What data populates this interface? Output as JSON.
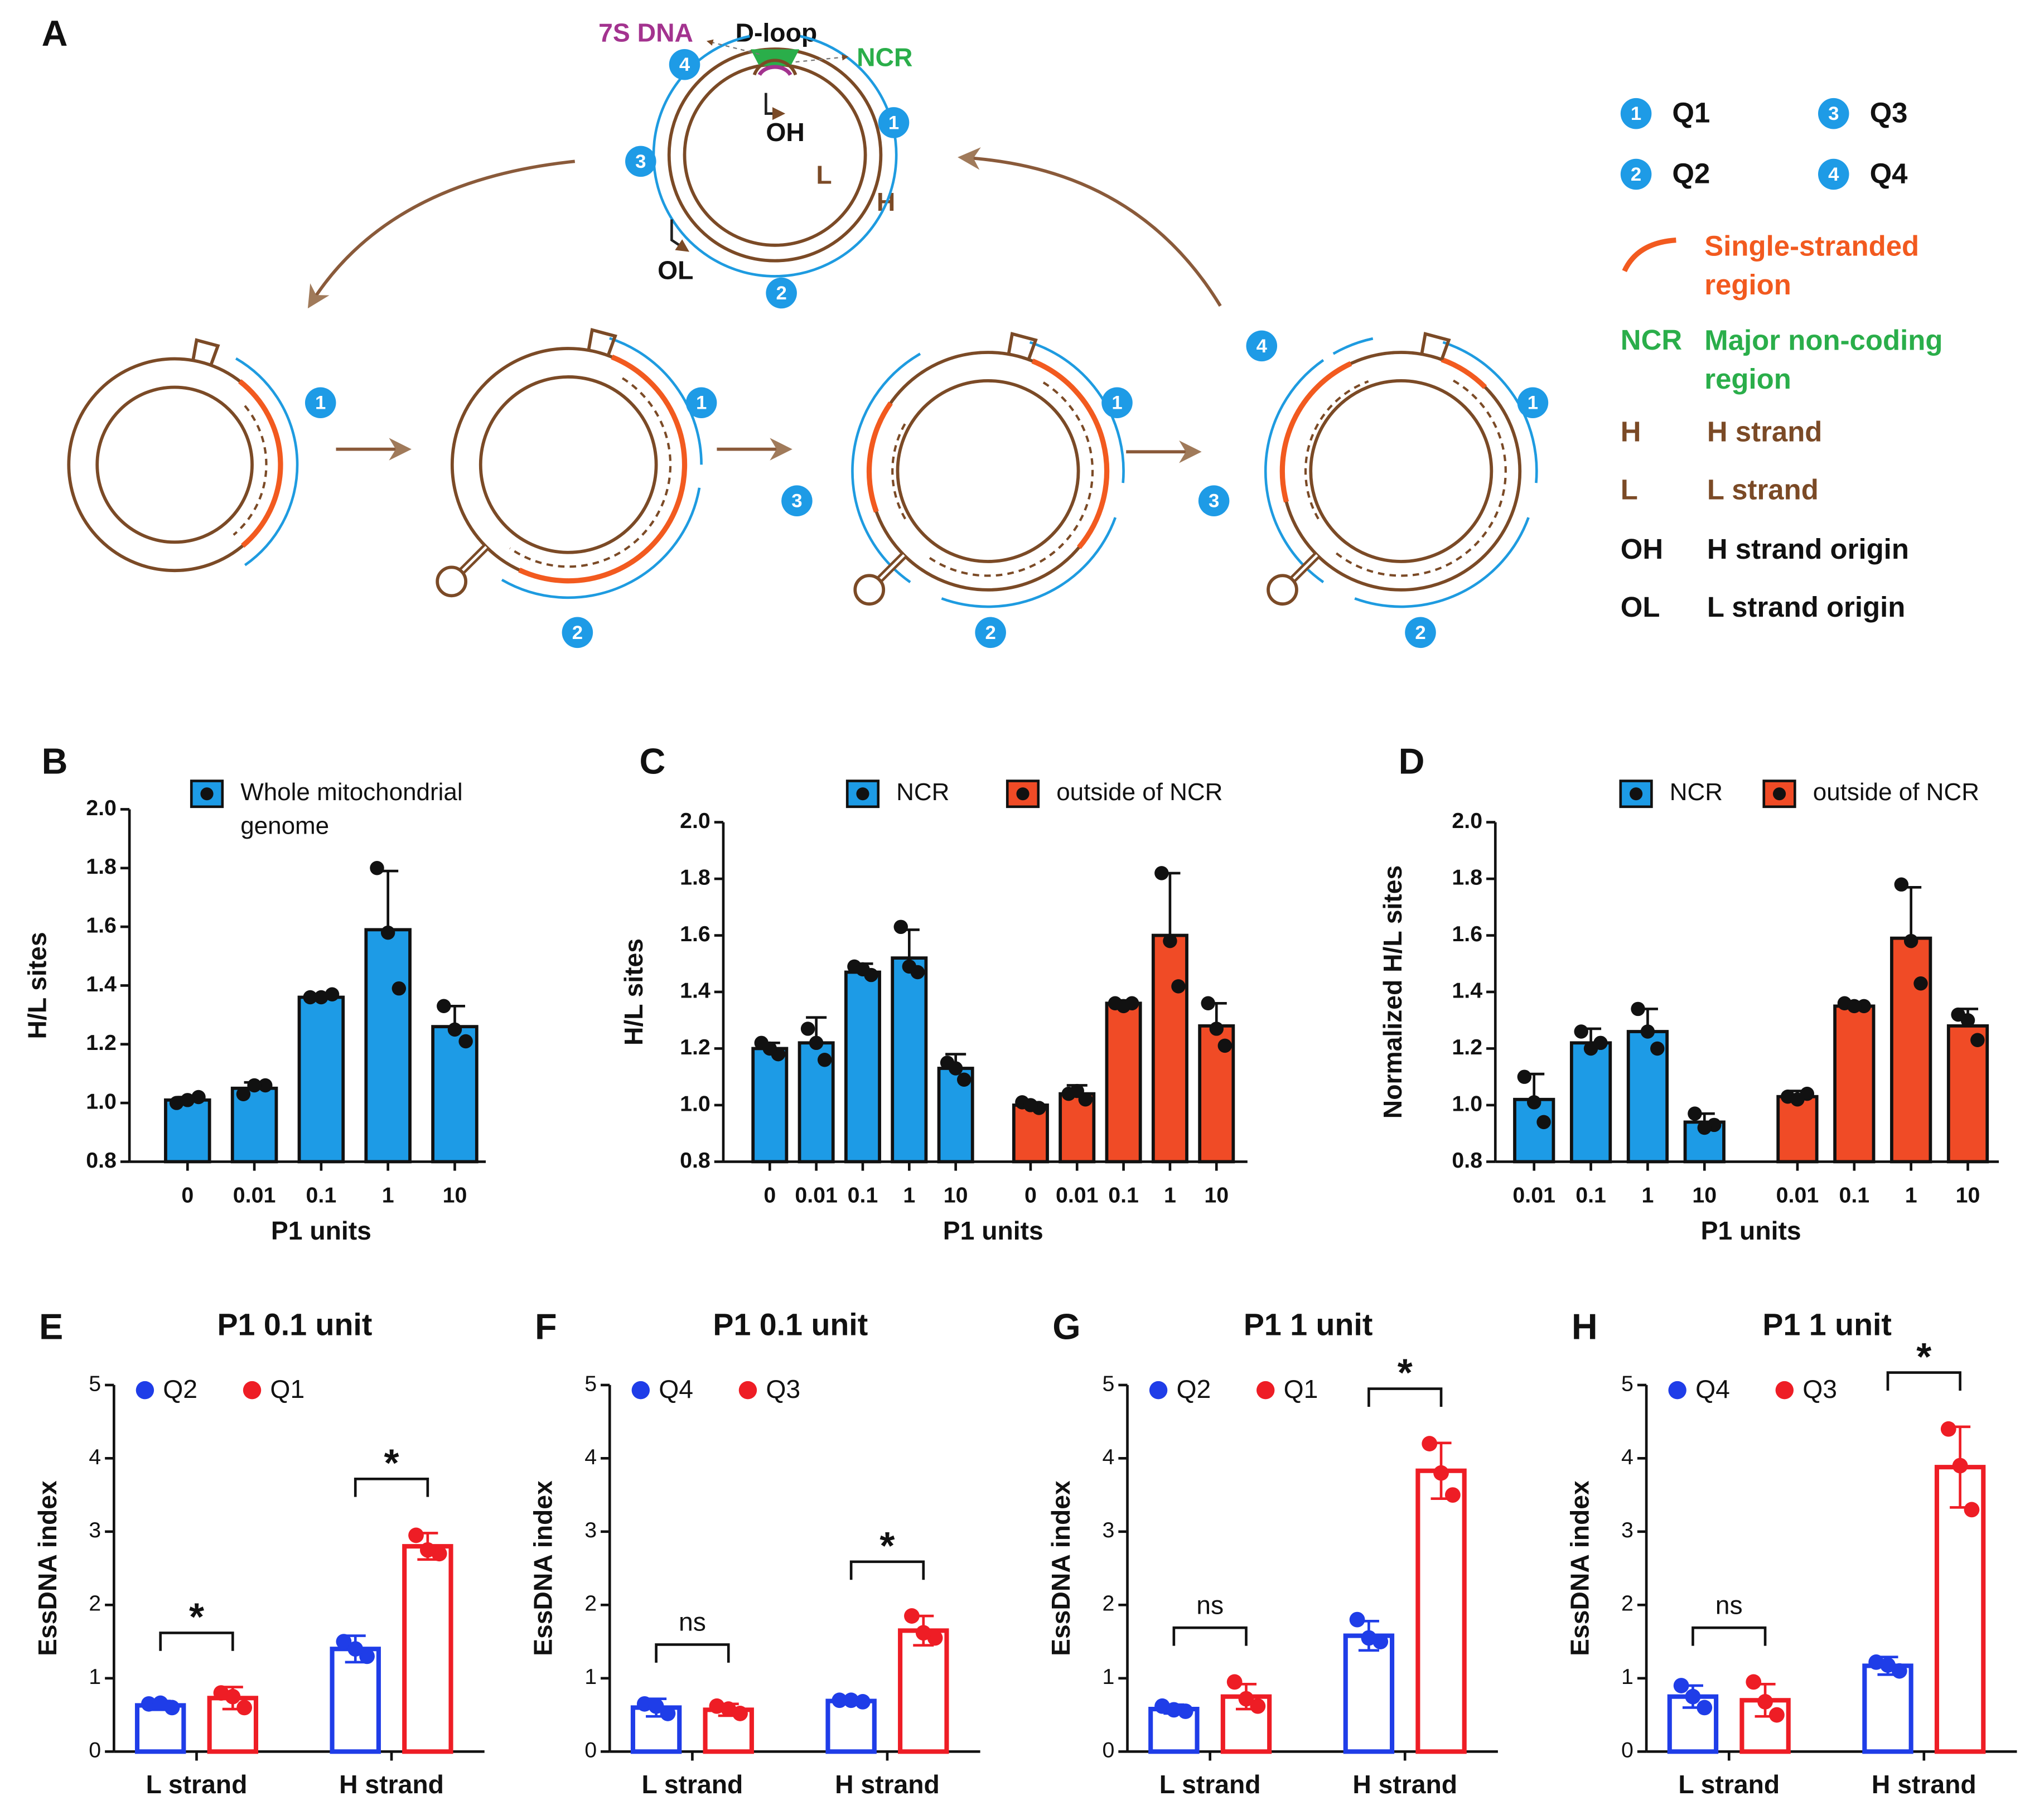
{
  "diagram": {
    "panel": "A",
    "labels": {
      "dna7s": "7S DNA",
      "dloop": "D-loop",
      "ncr": "NCR",
      "oh": "OH",
      "l": "L",
      "h": "H",
      "ol": "OL"
    },
    "quadrants": [
      {
        "number": "1",
        "name": "Q1"
      },
      {
        "number": "2",
        "name": "Q2"
      },
      {
        "number": "3",
        "name": "Q3"
      },
      {
        "number": "4",
        "name": "Q4"
      }
    ],
    "legend": [
      {
        "text": "Single-stranded region",
        "color": "#f25a1f"
      },
      {
        "key": "NCR",
        "text": "Major non-coding region",
        "color": "#2aae4a"
      },
      {
        "key": "H",
        "text": "H strand",
        "color": "#7b4a26"
      },
      {
        "key": "L",
        "text": "L strand",
        "color": "#7b4a26"
      },
      {
        "key": "OH",
        "text": "H strand origin",
        "color": "#111111"
      },
      {
        "key": "OL",
        "text": "L strand origin",
        "color": "#111111"
      }
    ]
  },
  "chart_data": [
    {
      "type": "bar",
      "panel": "B",
      "bar_style": "filled",
      "ylabel": "H/L sites",
      "xlabel": "P1 units",
      "categories": [
        "0",
        "0.01",
        "0.1",
        "1",
        "10"
      ],
      "series": [
        {
          "name": "Whole mitochondrial genome",
          "color": "#1d9be6",
          "values": [
            1.01,
            1.05,
            1.36,
            1.59,
            1.26
          ],
          "errors": [
            0.01,
            0.02,
            0.01,
            0.2,
            0.07
          ],
          "points": [
            [
              1.0,
              1.02,
              1.01
            ],
            [
              1.03,
              1.06,
              1.06
            ],
            [
              1.36,
              1.37,
              1.36
            ],
            [
              1.8,
              1.39,
              1.58
            ],
            [
              1.33,
              1.21,
              1.25
            ]
          ]
        }
      ],
      "ylim": [
        0.8,
        2.0
      ],
      "yticks": [
        0.8,
        {
          "value": 1,
          "label": "1.0"
        },
        1.2,
        1.4,
        1.6,
        1.8,
        {
          "value": 2,
          "label": "2.0"
        }
      ]
    },
    {
      "type": "bar",
      "panel": "C",
      "bar_style": "filled",
      "ylabel": "H/L sites",
      "xlabel": "P1 units",
      "categories": [
        "0",
        "0.01",
        "0.1",
        "1",
        "10",
        "0",
        "0.01",
        "0.1",
        "1",
        "10"
      ],
      "series": [
        {
          "name": "NCR",
          "color": "#1d9be6",
          "values": [
            1.2,
            1.22,
            1.47,
            1.52,
            1.13,
            null,
            null,
            null,
            null,
            null
          ],
          "errors": [
            0.02,
            0.09,
            0.03,
            0.1,
            0.05,
            null,
            null,
            null,
            null,
            null
          ],
          "points": [
            [
              1.22,
              1.18,
              1.2
            ],
            [
              1.27,
              1.16,
              1.22
            ],
            [
              1.49,
              1.46,
              1.48
            ],
            [
              1.63,
              1.47,
              1.49
            ],
            [
              1.15,
              1.09,
              1.13
            ],
            null,
            null,
            null,
            null,
            null
          ]
        },
        {
          "name": "outside of NCR",
          "color": "#f04b26",
          "values": [
            null,
            null,
            null,
            null,
            null,
            1.0,
            1.04,
            1.36,
            1.6,
            1.28
          ],
          "errors": [
            null,
            null,
            null,
            null,
            null,
            0.01,
            0.03,
            0.01,
            0.22,
            0.08
          ],
          "points": [
            null,
            null,
            null,
            null,
            null,
            [
              1.01,
              0.99,
              1.0
            ],
            [
              1.04,
              1.02,
              1.05
            ],
            [
              1.36,
              1.36,
              1.35
            ],
            [
              1.82,
              1.42,
              1.58
            ],
            [
              1.36,
              1.21,
              1.27
            ]
          ]
        }
      ],
      "ylim": [
        0.8,
        2.0
      ],
      "yticks": [
        0.8,
        {
          "value": 1,
          "label": "1.0"
        },
        1.2,
        1.4,
        1.6,
        1.8,
        {
          "value": 2,
          "label": "2.0"
        }
      ]
    },
    {
      "type": "bar",
      "panel": "D",
      "bar_style": "filled",
      "ylabel": "Normalized H/L sites",
      "xlabel": "P1 units",
      "categories": [
        "0.01",
        "0.1",
        "1",
        "10",
        "0.01",
        "0.1",
        "1",
        "10"
      ],
      "series": [
        {
          "name": "NCR",
          "color": "#1d9be6",
          "values": [
            1.02,
            1.22,
            1.26,
            0.94,
            null,
            null,
            null,
            null
          ],
          "errors": [
            0.09,
            0.05,
            0.08,
            0.03,
            null,
            null,
            null,
            null
          ],
          "points": [
            [
              1.1,
              0.94,
              1.01
            ],
            [
              1.26,
              1.22,
              1.2
            ],
            [
              1.34,
              1.2,
              1.26
            ],
            [
              0.97,
              0.93,
              0.92
            ],
            null,
            null,
            null,
            null
          ]
        },
        {
          "name": "outside of NCR",
          "color": "#f04b26",
          "values": [
            null,
            null,
            null,
            null,
            1.03,
            1.35,
            1.59,
            1.28
          ],
          "errors": [
            null,
            null,
            null,
            null,
            0.02,
            0.01,
            0.18,
            0.06
          ],
          "points": [
            null,
            null,
            null,
            null,
            [
              1.03,
              1.04,
              1.02
            ],
            [
              1.36,
              1.35,
              1.35
            ],
            [
              1.78,
              1.43,
              1.58
            ],
            [
              1.32,
              1.23,
              1.3
            ]
          ]
        }
      ],
      "ylim": [
        0.8,
        2.0
      ],
      "yticks": [
        0.8,
        {
          "value": 1,
          "label": "1.0"
        },
        1.2,
        1.4,
        1.6,
        1.8,
        {
          "value": 2,
          "label": "2.0"
        }
      ]
    },
    {
      "type": "bar",
      "panel": "E",
      "bar_style": "outline",
      "title": "P1 0.1 unit",
      "ylabel": "EssDNA index",
      "categories": [
        "L strand",
        "H strand"
      ],
      "series": [
        {
          "name": "Q2",
          "color": "#1f3de8",
          "values": [
            0.63,
            1.4
          ],
          "errors": [
            0.06,
            0.18
          ],
          "points": [
            [
              0.65,
              0.6,
              0.66
            ],
            [
              1.5,
              1.3,
              1.4
            ]
          ]
        },
        {
          "name": "Q1",
          "color": "#ee1d25",
          "values": [
            0.73,
            2.8
          ],
          "errors": [
            0.15,
            0.18
          ],
          "points": [
            [
              0.8,
              0.6,
              0.75
            ],
            [
              2.95,
              2.7,
              2.75
            ]
          ]
        }
      ],
      "annotations": [
        "*",
        "*"
      ],
      "ylim": [
        0,
        5
      ],
      "yticks": [
        0,
        1,
        2,
        3,
        4,
        5
      ]
    },
    {
      "type": "bar",
      "panel": "F",
      "bar_style": "outline",
      "title": "P1 0.1 unit",
      "ylabel": "EssDNA index",
      "categories": [
        "L strand",
        "H strand"
      ],
      "series": [
        {
          "name": "Q4",
          "color": "#1f3de8",
          "values": [
            0.6,
            0.69
          ],
          "errors": [
            0.12,
            0.02
          ],
          "points": [
            [
              0.65,
              0.52,
              0.62
            ],
            [
              0.7,
              0.68,
              0.7
            ]
          ]
        },
        {
          "name": "Q3",
          "color": "#ee1d25",
          "values": [
            0.57,
            1.65
          ],
          "errors": [
            0.08,
            0.2
          ],
          "points": [
            [
              0.62,
              0.52,
              0.58
            ],
            [
              1.85,
              1.55,
              1.62
            ]
          ]
        }
      ],
      "annotations": [
        "ns",
        "*"
      ],
      "ylim": [
        0,
        5
      ],
      "yticks": [
        0,
        1,
        2,
        3,
        4,
        5
      ]
    },
    {
      "type": "bar",
      "panel": "G",
      "bar_style": "outline",
      "title": "P1 1 unit",
      "ylabel": "EssDNA index",
      "categories": [
        "L strand",
        "H strand"
      ],
      "series": [
        {
          "name": "Q2",
          "color": "#1f3de8",
          "values": [
            0.58,
            1.58
          ],
          "errors": [
            0.06,
            0.2
          ],
          "points": [
            [
              0.62,
              0.55,
              0.57
            ],
            [
              1.8,
              1.5,
              1.55
            ]
          ]
        },
        {
          "name": "Q1",
          "color": "#ee1d25",
          "values": [
            0.75,
            3.83
          ],
          "errors": [
            0.17,
            0.38
          ],
          "points": [
            [
              0.95,
              0.62,
              0.72
            ],
            [
              4.2,
              3.5,
              3.8
            ]
          ]
        }
      ],
      "annotations": [
        "ns",
        "*"
      ],
      "ylim": [
        0,
        5
      ],
      "yticks": [
        0,
        1,
        2,
        3,
        4,
        5
      ]
    },
    {
      "type": "bar",
      "panel": "H",
      "bar_style": "outline",
      "title": "P1 1 unit",
      "ylabel": "EssDNA index",
      "categories": [
        "L strand",
        "H strand"
      ],
      "series": [
        {
          "name": "Q4",
          "color": "#1f3de8",
          "values": [
            0.75,
            1.17
          ],
          "errors": [
            0.15,
            0.12
          ],
          "points": [
            [
              0.9,
              0.6,
              0.75
            ],
            [
              1.22,
              1.1,
              1.18
            ]
          ]
        },
        {
          "name": "Q3",
          "color": "#ee1d25",
          "values": [
            0.7,
            3.88
          ],
          "errors": [
            0.22,
            0.55
          ],
          "points": [
            [
              0.95,
              0.5,
              0.68
            ],
            [
              4.4,
              3.3,
              3.9
            ]
          ]
        }
      ],
      "annotations": [
        "ns",
        "*"
      ],
      "ylim": [
        0,
        5
      ],
      "yticks": [
        0,
        1,
        2,
        3,
        4,
        5
      ]
    }
  ]
}
